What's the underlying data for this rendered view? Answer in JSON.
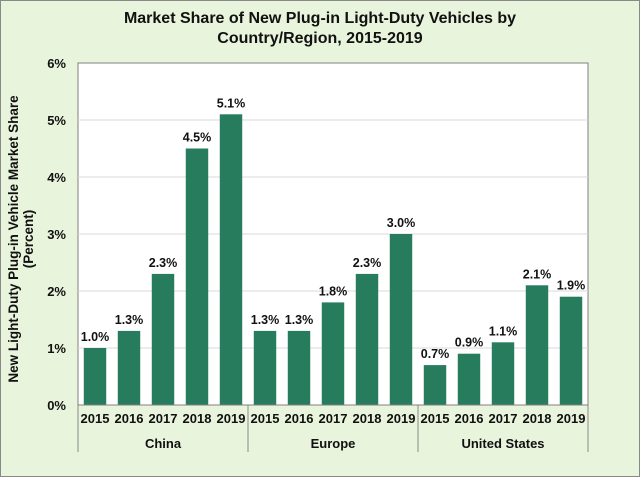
{
  "chart_data": {
    "type": "bar",
    "title_lines": [
      "Market Share of New Plug-in Light-Duty Vehicles by",
      "Country/Region, 2015-2019"
    ],
    "ylabel_lines": [
      "New Light-Duty Plug-in Vehicle Market Share",
      "(Percent)"
    ],
    "xlabel": "",
    "ylim": [
      0,
      6
    ],
    "yticks": [
      "0%",
      "1%",
      "2%",
      "3%",
      "4%",
      "5%",
      "6%"
    ],
    "grid": true,
    "bar_color": "#267c5c",
    "groups": [
      {
        "name": "China",
        "categories": [
          "2015",
          "2016",
          "2017",
          "2018",
          "2019"
        ],
        "values": [
          1.0,
          1.3,
          2.3,
          4.5,
          5.1
        ],
        "labels": [
          "1.0%",
          "1.3%",
          "2.3%",
          "4.5%",
          "5.1%"
        ]
      },
      {
        "name": "Europe",
        "categories": [
          "2015",
          "2016",
          "2017",
          "2018",
          "2019"
        ],
        "values": [
          1.3,
          1.3,
          1.8,
          2.3,
          3.0
        ],
        "labels": [
          "1.3%",
          "1.3%",
          "1.8%",
          "2.3%",
          "3.0%"
        ]
      },
      {
        "name": "United States",
        "categories": [
          "2015",
          "2016",
          "2017",
          "2018",
          "2019"
        ],
        "values": [
          0.7,
          0.9,
          1.1,
          2.1,
          1.9
        ],
        "labels": [
          "0.7%",
          "0.9%",
          "1.1%",
          "2.1%",
          "1.9%"
        ]
      }
    ]
  }
}
